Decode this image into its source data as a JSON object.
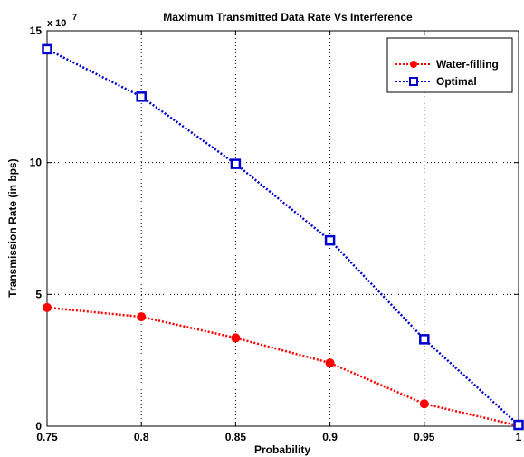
{
  "chart_data": {
    "type": "line",
    "title": "Maximum Transmitted Data Rate Vs Interference",
    "xlabel": "Probability",
    "ylabel": "Transmission Rate (in bps)",
    "y_multiplier": "x 10",
    "y_exponent": "7",
    "x": [
      0.75,
      0.8,
      0.85,
      0.9,
      0.95,
      1
    ],
    "xticks": [
      "0.75",
      "0.8",
      "0.85",
      "0.9",
      "0.95",
      "1"
    ],
    "yticks": [
      "0",
      "5",
      "10",
      "15"
    ],
    "xlim": [
      0.75,
      1
    ],
    "ylim": [
      0,
      15
    ],
    "grid": true,
    "legend_position": "top-right",
    "series": [
      {
        "name": "Water-filling",
        "values": [
          4.5,
          4.15,
          3.35,
          2.4,
          0.85,
          0.02
        ],
        "color": "#ff0000",
        "marker": "circle"
      },
      {
        "name": "Optimal",
        "values": [
          14.3,
          12.5,
          9.95,
          7.05,
          3.3,
          0.05
        ],
        "color": "#0000cc",
        "marker": "square"
      }
    ]
  }
}
